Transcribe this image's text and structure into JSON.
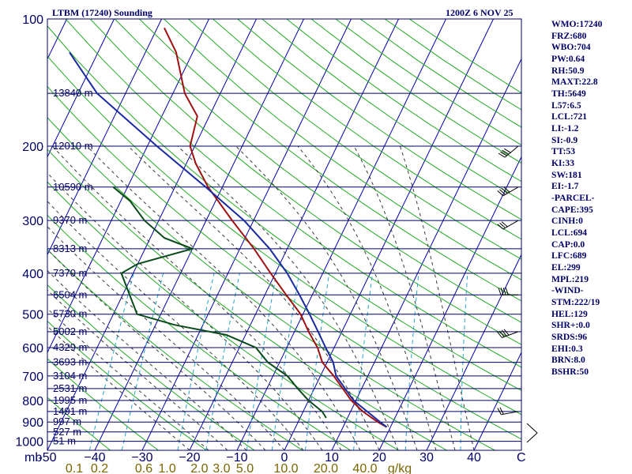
{
  "header": {
    "station": "LTBM (17240) Sounding",
    "time": "1200Z  6 NOV 25"
  },
  "parameters": [
    "WMO:17240",
    "FRZ:680",
    "WBO:704",
    "PW:0.64",
    "RH:50.9",
    "MAXT:22.8",
    "TH:5649",
    "L57:6.5",
    "LCL:721",
    "LI:-1.2",
    "SI:-0.9",
    "TT:53",
    "KI:33",
    "SW:181",
    "EI:-1.7",
    "-PARCEL-",
    "CAPE:395",
    "CINH:0",
    "LCL:694",
    "CAP:0.0",
    "LFC:689",
    "EL:299",
    "MPL:219",
    "-WIND-",
    "STM:222/19",
    "HEL:129",
    "SHR+:0.0",
    "SRDS:96",
    "EHI:0.3",
    "BRN:8.0",
    "BSHR:50"
  ],
  "chart_data": {
    "type": "line",
    "title": "LTBM (17240) Sounding 1200Z 6 NOV 25",
    "xlabel": "C",
    "ylabel": "mb",
    "xlim": [
      -50,
      50
    ],
    "ylim": [
      1050,
      100
    ],
    "pressure_ticks": [
      100,
      200,
      300,
      400,
      500,
      600,
      700,
      800,
      900,
      1000
    ],
    "temperature_ticks": [
      -50,
      -40,
      -30,
      -20,
      -10,
      0,
      10,
      20,
      30,
      40
    ],
    "temperature_tick_labels": [
      "-50",
      "−40",
      "−30",
      "−20",
      "−10",
      "0",
      "10",
      "20",
      "30",
      "40"
    ],
    "mixing_ratio_labels": [
      "0.1",
      "0.2",
      "0.6",
      "1.0",
      "2.0",
      "3.0",
      "5.0",
      "10.0",
      "20.0",
      "40.0",
      "g/kg"
    ],
    "height_labels": [
      {
        "p": 150,
        "label": "13840 m"
      },
      {
        "p": 200,
        "label": "12010 m"
      },
      {
        "p": 250,
        "label": "10590 m"
      },
      {
        "p": 300,
        "label": "9370 m"
      },
      {
        "p": 350,
        "label": "8313 m"
      },
      {
        "p": 400,
        "label": "7370 m"
      },
      {
        "p": 450,
        "label": "6504 m"
      },
      {
        "p": 500,
        "label": "5730 m"
      },
      {
        "p": 550,
        "label": "5002 m"
      },
      {
        "p": 600,
        "label": "4329 m"
      },
      {
        "p": 650,
        "label": "3693 m"
      },
      {
        "p": 700,
        "label": "3104 m"
      },
      {
        "p": 750,
        "label": "2531 m"
      },
      {
        "p": 800,
        "label": "1995 m"
      },
      {
        "p": 850,
        "label": "1491 m"
      },
      {
        "p": 900,
        "label": "997 m"
      },
      {
        "p": 950,
        "label": "527 m"
      },
      {
        "p": 1000,
        "label": "51 m"
      }
    ],
    "series": [
      {
        "name": "Temperature",
        "color": "#a01010",
        "points": [
          {
            "p": 925,
            "t": 19.2
          },
          {
            "p": 900,
            "t": 16.8
          },
          {
            "p": 850,
            "t": 12.6
          },
          {
            "p": 800,
            "t": 9.0
          },
          {
            "p": 700,
            "t": 2.8
          },
          {
            "p": 650,
            "t": -1.0
          },
          {
            "p": 600,
            "t": -3.5
          },
          {
            "p": 550,
            "t": -7.0
          },
          {
            "p": 500,
            "t": -10.5
          },
          {
            "p": 450,
            "t": -15.5
          },
          {
            "p": 400,
            "t": -21.0
          },
          {
            "p": 350,
            "t": -27.0
          },
          {
            "p": 300,
            "t": -34.5
          },
          {
            "p": 250,
            "t": -43.0
          },
          {
            "p": 220,
            "t": -48.0
          },
          {
            "p": 200,
            "t": -51.0
          },
          {
            "p": 170,
            "t": -52.5
          },
          {
            "p": 150,
            "t": -57.5
          },
          {
            "p": 120,
            "t": -63.5
          },
          {
            "p": 105,
            "t": -68.5
          }
        ]
      },
      {
        "name": "Dewpoint",
        "color": "#0a4a1a",
        "points": [
          {
            "p": 880,
            "t": 5.5
          },
          {
            "p": 850,
            "t": 4.0
          },
          {
            "p": 800,
            "t": 0.0
          },
          {
            "p": 750,
            "t": -3.5
          },
          {
            "p": 700,
            "t": -7.0
          },
          {
            "p": 650,
            "t": -12.5
          },
          {
            "p": 600,
            "t": -16.5
          },
          {
            "p": 560,
            "t": -24.0
          },
          {
            "p": 530,
            "t": -36.0
          },
          {
            "p": 500,
            "t": -45.0
          },
          {
            "p": 400,
            "t": -52.5
          },
          {
            "p": 380,
            "t": -50.0
          },
          {
            "p": 350,
            "t": -40.0
          },
          {
            "p": 330,
            "t": -47.0
          },
          {
            "p": 300,
            "t": -53.0
          },
          {
            "p": 270,
            "t": -58.0
          },
          {
            "p": 250,
            "t": -63.0
          }
        ]
      },
      {
        "name": "Parcel",
        "color": "#1a2aa0",
        "points": [
          {
            "p": 925,
            "t": 19.2
          },
          {
            "p": 900,
            "t": 17.3
          },
          {
            "p": 850,
            "t": 13.5
          },
          {
            "p": 800,
            "t": 9.5
          },
          {
            "p": 700,
            "t": 3.3
          },
          {
            "p": 650,
            "t": 1.3
          },
          {
            "p": 600,
            "t": -1.8
          },
          {
            "p": 550,
            "t": -5.0
          },
          {
            "p": 500,
            "t": -8.6
          },
          {
            "p": 450,
            "t": -12.7
          },
          {
            "p": 400,
            "t": -17.5
          },
          {
            "p": 350,
            "t": -23.7
          },
          {
            "p": 300,
            "t": -32.0
          },
          {
            "p": 250,
            "t": -43.5
          },
          {
            "p": 200,
            "t": -58.0
          },
          {
            "p": 150,
            "t": -76.0
          },
          {
            "p": 120,
            "t": -86.0
          }
        ]
      }
    ],
    "wind_barbs": [
      {
        "p": 200,
        "direction": 230,
        "speed_kt": 40
      },
      {
        "p": 250,
        "direction": 240,
        "speed_kt": 35
      },
      {
        "p": 300,
        "direction": 240,
        "speed_kt": 30
      },
      {
        "p": 450,
        "direction": 270,
        "speed_kt": 35
      },
      {
        "p": 550,
        "direction": 250,
        "speed_kt": 40
      },
      {
        "p": 850,
        "direction": 260,
        "speed_kt": 20
      }
    ]
  }
}
